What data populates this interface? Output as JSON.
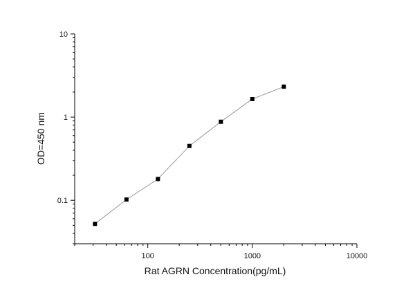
{
  "chart_data": {
    "type": "line",
    "title": "",
    "xlabel": "Rat AGRN Concentration(pg/mL)",
    "ylabel": "OD=450 nm",
    "x_scale": "log",
    "y_scale": "log",
    "xlim": [
      20,
      10000
    ],
    "ylim": [
      0.03,
      10
    ],
    "x_ticks": [
      100,
      1000,
      10000
    ],
    "x_tick_labels": [
      "100",
      "1000",
      "10000"
    ],
    "y_ticks": [
      0.1,
      1,
      10
    ],
    "y_tick_labels": [
      "0.1",
      "1",
      "10"
    ],
    "grid": false,
    "series": [
      {
        "x": [
          31.25,
          62.5,
          125,
          250,
          500,
          1000,
          2000
        ],
        "y": [
          0.052,
          0.102,
          0.18,
          0.45,
          0.88,
          1.65,
          2.32
        ],
        "marker": "square",
        "marker_color": "#000000",
        "line_color": "#9a9a9a"
      }
    ]
  }
}
